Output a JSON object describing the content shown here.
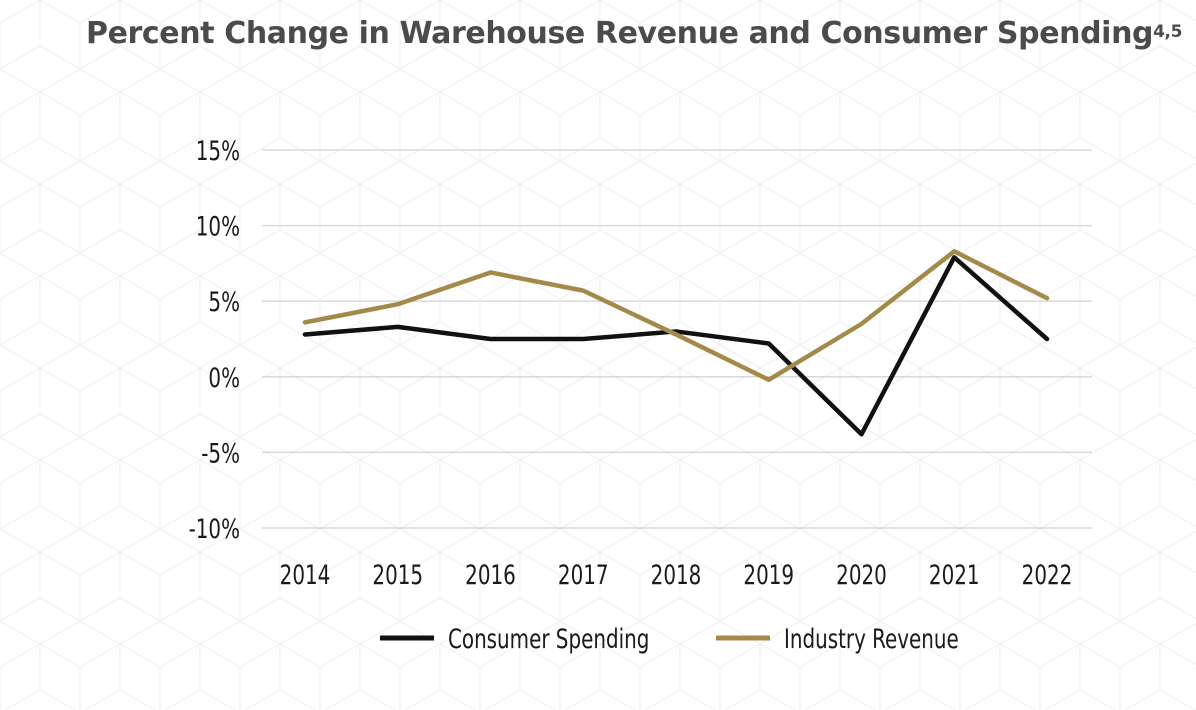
{
  "title": "Percent Change in Warehouse Revenue and Consumer Spending",
  "title_sup": "4,5",
  "chart_data": {
    "type": "line",
    "title": "Percent Change in Warehouse Revenue and Consumer Spending",
    "xlabel": "",
    "ylabel": "",
    "categories": [
      "2014",
      "2015",
      "2016",
      "2017",
      "2018",
      "2019",
      "2020",
      "2021",
      "2022"
    ],
    "yticks": [
      15,
      10,
      5,
      0,
      -5,
      -10
    ],
    "ytick_labels": [
      "15%",
      "10%",
      "5%",
      "0%",
      "-5%",
      "-10%"
    ],
    "ylim": [
      -10,
      15
    ],
    "grid": true,
    "legend_position": "bottom",
    "series": [
      {
        "name": "Consumer Spending",
        "color": "#111111",
        "values": [
          2.8,
          3.3,
          2.5,
          2.5,
          3.0,
          2.2,
          -3.8,
          7.9,
          2.5
        ]
      },
      {
        "name": "Industry Revenue",
        "color": "#a48a4a",
        "values": [
          3.6,
          4.8,
          6.9,
          5.7,
          2.8,
          -0.2,
          3.5,
          8.3,
          5.2
        ]
      }
    ]
  }
}
